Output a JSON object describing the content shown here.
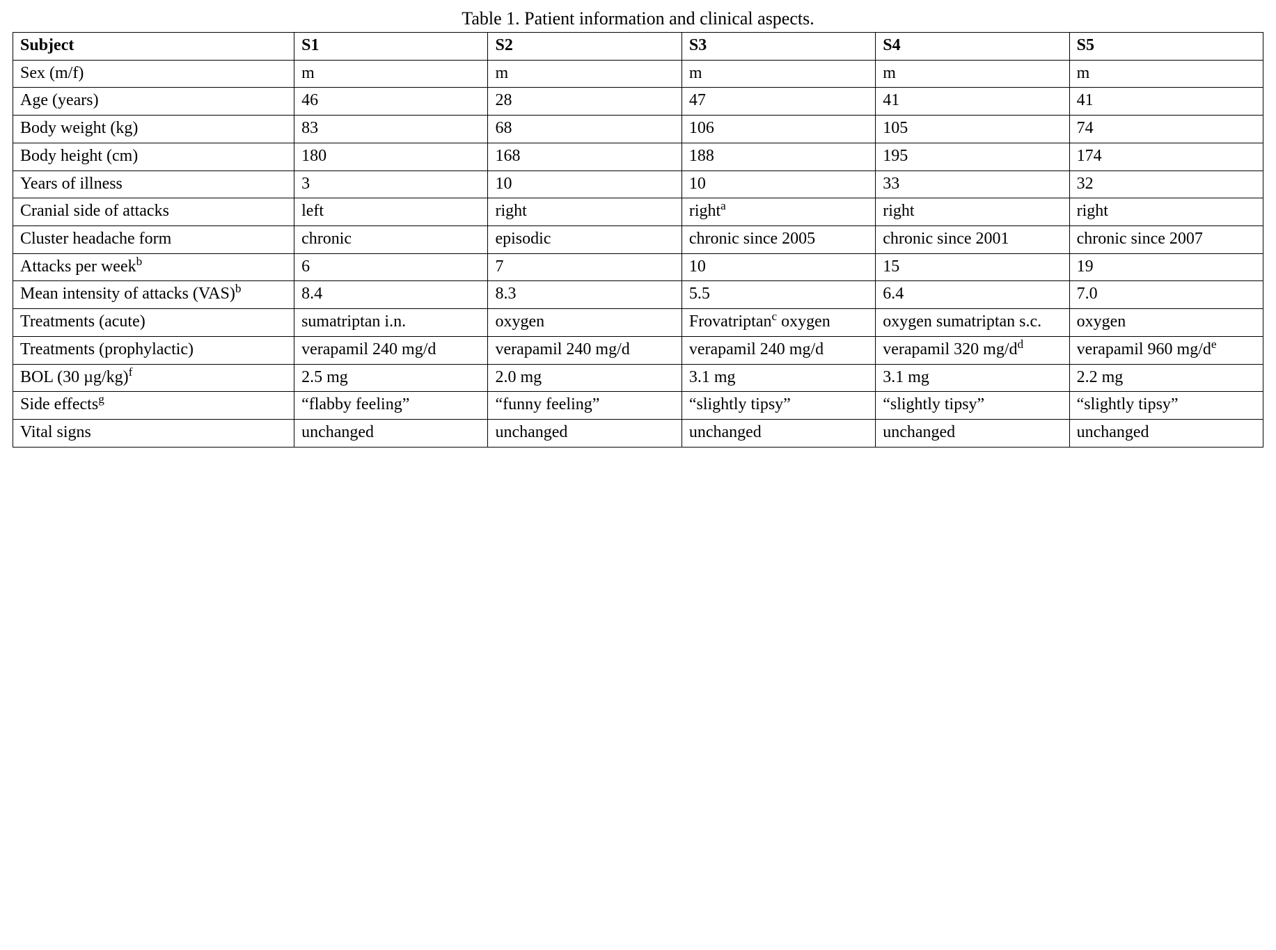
{
  "title": "Table 1. Patient information and clinical aspects.",
  "table": {
    "columns": [
      "Subject",
      "S1",
      "S2",
      "S3",
      "S4",
      "S5"
    ],
    "label_col_width_pct": 22.5,
    "subject_col_width_pct": 15.5,
    "font_family": "Times New Roman",
    "font_size_pt": 18,
    "border_color": "#000000",
    "background_color": "#ffffff",
    "rows": [
      {
        "label": "Sex (m/f)",
        "cells": [
          "m",
          "m",
          "m",
          "m",
          "m"
        ]
      },
      {
        "label": "Age (years)",
        "cells": [
          "46",
          "28",
          "47",
          "41",
          "41"
        ]
      },
      {
        "label": "Body weight (kg)",
        "cells": [
          "83",
          "68",
          "106",
          "105",
          "74"
        ]
      },
      {
        "label": "Body height (cm)",
        "cells": [
          "180",
          "168",
          "188",
          "195",
          "174"
        ]
      },
      {
        "label": "Years of illness",
        "cells": [
          "3",
          "10",
          "10",
          "33",
          "32"
        ]
      },
      {
        "label": "Cranial side of attacks",
        "cells": [
          "left",
          "right",
          "right<sup>a</sup>",
          "right",
          "right"
        ]
      },
      {
        "label": "Cluster headache form",
        "cells": [
          "chronic",
          "episodic",
          "chronic since 2005",
          "chronic since 2001",
          "chronic since 2007"
        ]
      },
      {
        "label": "Attacks per week<sup>b</sup>",
        "cells": [
          "6",
          "7",
          "10",
          "15",
          "19"
        ]
      },
      {
        "label": "Mean intensity of attacks (VAS)<sup>b</sup>",
        "cells": [
          "8.4",
          "8.3",
          "5.5",
          "6.4",
          "7.0"
        ]
      },
      {
        "label": "Treatments (acute)",
        "cells": [
          "sumatriptan i.n.",
          "oxygen",
          "Frovatriptan<sup>c</sup> oxygen",
          "oxygen sumatriptan s.c.",
          "oxygen"
        ]
      },
      {
        "label": "Treatments (prophylactic)",
        "cells": [
          "verapamil 240 mg/d",
          "verapamil 240 mg/d",
          "verapamil 240 mg/d",
          "verapamil 320 mg/d<sup>d</sup>",
          "verapamil 960 mg/d<sup>e</sup>"
        ]
      },
      {
        "label": "BOL (30 µg/kg)<sup>f</sup>",
        "cells": [
          "2.5 mg",
          "2.0 mg",
          "3.1 mg",
          "3.1 mg",
          "2.2 mg"
        ]
      },
      {
        "label": "Side effects<sup>g</sup>",
        "cells": [
          "“flabby feeling”",
          "“funny feeling”",
          "“slightly tipsy”",
          "“slightly tipsy”",
          "“slightly tipsy”"
        ]
      },
      {
        "label": "Vital signs",
        "cells": [
          "unchanged",
          "unchanged",
          "unchanged",
          "unchanged",
          "unchanged"
        ]
      }
    ]
  }
}
